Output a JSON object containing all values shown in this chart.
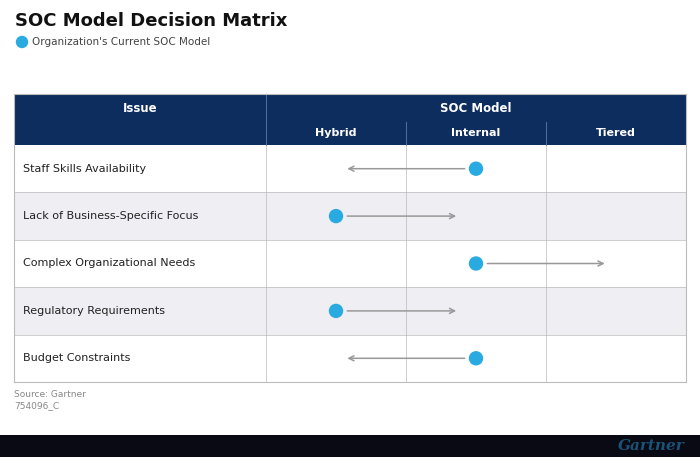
{
  "title": "SOC Model Decision Matrix",
  "legend_label": "Organization's Current SOC Model",
  "source_text": "Source: Gartner",
  "source_code": "754096_C",
  "gartner_text": "Gartner",
  "header_bg": "#0d2d5e",
  "header_text_color": "#ffffff",
  "row_colors": [
    "#ffffff",
    "#eeeef3",
    "#ffffff",
    "#eeeef3",
    "#ffffff"
  ],
  "col_header": [
    "Issue",
    "SOC Model"
  ],
  "sub_headers": [
    "Hybrid",
    "Internal",
    "Tiered"
  ],
  "rows": [
    "Staff Skills Availability",
    "Lack of Business-Specific Focus",
    "Complex Organizational Needs",
    "Regulatory Requirements",
    "Budget Constraints"
  ],
  "dot_color": "#29abe2",
  "arrow_color": "#999999",
  "title_fontsize": 13,
  "header_fontsize": 8.5,
  "body_fontsize": 8,
  "legend_fontsize": 7.5,
  "source_fontsize": 6.5,
  "gartner_fontsize": 11,
  "bottom_bar_color": "#0a0a14",
  "border_color": "#bbbbbb",
  "divider_color": "#4a6a9a"
}
